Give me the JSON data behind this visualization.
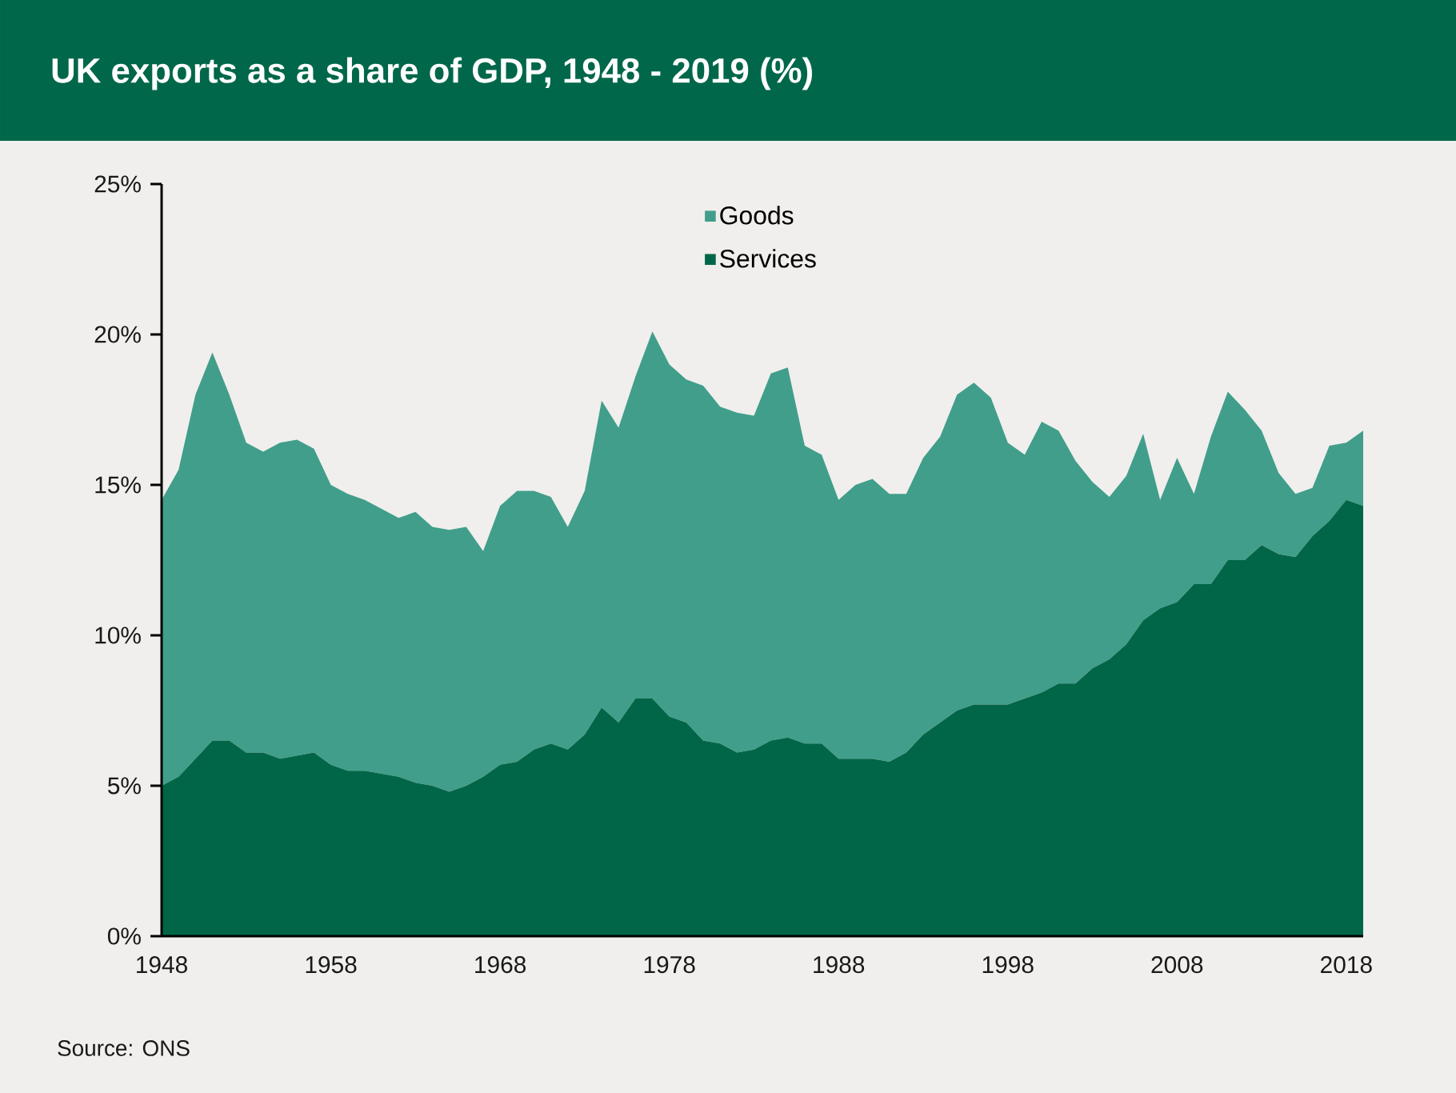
{
  "chart_data": {
    "type": "area",
    "title": "UK exports as a share of GDP, 1948 - 2019 (%)",
    "annotations": [
      "Source: ONS"
    ],
    "x": [
      1948,
      1949,
      1950,
      1951,
      1952,
      1953,
      1954,
      1955,
      1956,
      1957,
      1958,
      1959,
      1960,
      1961,
      1962,
      1963,
      1964,
      1965,
      1966,
      1967,
      1968,
      1969,
      1970,
      1971,
      1972,
      1973,
      1974,
      1975,
      1976,
      1977,
      1978,
      1979,
      1980,
      1981,
      1982,
      1983,
      1984,
      1985,
      1986,
      1987,
      1988,
      1989,
      1990,
      1991,
      1992,
      1993,
      1994,
      1995,
      1996,
      1997,
      1998,
      1999,
      2000,
      2001,
      2002,
      2003,
      2004,
      2005,
      2006,
      2007,
      2008,
      2009,
      2010,
      2011,
      2012,
      2013,
      2014,
      2015,
      2016,
      2017,
      2018,
      2019
    ],
    "stacked": true,
    "series": [
      {
        "name": "Services",
        "color": "#006647",
        "values": [
          5.0,
          5.3,
          5.9,
          6.5,
          6.5,
          6.1,
          6.1,
          5.9,
          6.0,
          6.1,
          5.7,
          5.5,
          5.5,
          5.4,
          5.3,
          5.1,
          5.0,
          4.8,
          5.0,
          5.3,
          5.7,
          5.8,
          6.2,
          6.4,
          6.2,
          6.7,
          7.6,
          7.1,
          7.9,
          7.9,
          7.3,
          7.1,
          6.5,
          6.4,
          6.1,
          6.2,
          6.5,
          6.6,
          6.4,
          6.4,
          5.9,
          5.9,
          5.9,
          5.8,
          6.1,
          6.7,
          7.1,
          7.5,
          7.7,
          7.7,
          7.7,
          7.9,
          8.1,
          8.4,
          8.4,
          8.9,
          9.2,
          9.7,
          10.5,
          10.9,
          11.1,
          11.7,
          11.7,
          12.5,
          12.5,
          13.0,
          12.7,
          12.6,
          13.3,
          13.8,
          14.5,
          14.3
        ]
      },
      {
        "name": "Goods",
        "color": "#419e8a",
        "values": [
          9.5,
          10.2,
          12.1,
          12.9,
          11.5,
          10.3,
          10.0,
          10.5,
          10.5,
          10.1,
          9.3,
          9.2,
          9.0,
          8.8,
          8.6,
          9.0,
          8.6,
          8.7,
          8.6,
          7.5,
          8.6,
          9.0,
          8.6,
          8.2,
          7.4,
          8.1,
          10.2,
          9.8,
          10.7,
          12.2,
          11.7,
          11.4,
          11.8,
          11.2,
          11.3,
          11.1,
          12.2,
          12.3,
          9.9,
          9.6,
          8.6,
          9.1,
          9.3,
          8.9,
          8.6,
          9.2,
          9.5,
          10.5,
          10.7,
          10.2,
          8.7,
          8.1,
          9.0,
          8.4,
          7.4,
          6.2,
          5.4,
          5.6,
          6.2,
          3.6,
          4.8,
          3.0,
          4.9,
          5.6,
          5.0,
          3.8,
          2.7,
          2.1,
          1.6,
          2.5,
          1.9,
          2.5
        ]
      }
    ],
    "xlim": [
      1948,
      2019
    ],
    "xticks": [
      1948,
      1958,
      1968,
      1978,
      1988,
      1998,
      2008,
      2018
    ],
    "ylim": [
      0,
      25
    ],
    "yticks": [
      {
        "value": 0,
        "label": "0%"
      },
      {
        "value": 5,
        "label": "5%"
      },
      {
        "value": 10,
        "label": "10%"
      },
      {
        "value": 15,
        "label": "15%"
      },
      {
        "value": 20,
        "label": "20%"
      },
      {
        "value": 25,
        "label": "25%"
      }
    ],
    "legend": "top"
  }
}
